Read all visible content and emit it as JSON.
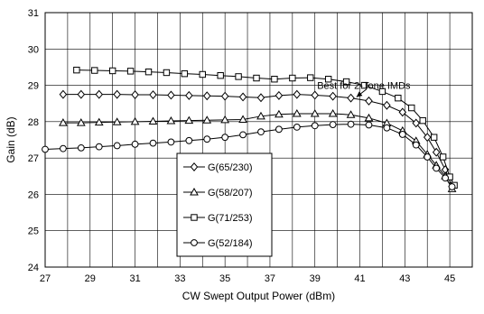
{
  "chart_data": {
    "type": "line",
    "title": "",
    "xlabel": "CW Swept Output Power (dBm)",
    "ylabel": "Gain (dB)",
    "xlim": [
      27,
      46
    ],
    "ylim": [
      24,
      31
    ],
    "xticks": [
      "27",
      "29",
      "31",
      "33",
      "35",
      "37",
      "39",
      "41",
      "43",
      "45"
    ],
    "yticks": [
      "24",
      "25",
      "26",
      "27",
      "28",
      "29",
      "30",
      "31"
    ],
    "grid": "both",
    "legend_position": "center-left",
    "annotation": "Best for 2-Tone IMDs",
    "series": [
      {
        "name": "G(65/230)",
        "marker": "diamond",
        "x": [
          27.8,
          28.6,
          29.4,
          30.2,
          31.0,
          31.8,
          32.6,
          33.4,
          34.2,
          35.0,
          35.8,
          36.6,
          37.4,
          38.2,
          39.0,
          39.8,
          40.6,
          41.4,
          42.2,
          42.9,
          43.5,
          44.0,
          44.4,
          44.8,
          45.1
        ],
        "y": [
          28.75,
          28.75,
          28.75,
          28.75,
          28.74,
          28.74,
          28.73,
          28.72,
          28.71,
          28.7,
          28.68,
          28.66,
          28.72,
          28.75,
          28.73,
          28.7,
          28.65,
          28.57,
          28.45,
          28.26,
          27.96,
          27.57,
          27.16,
          26.68,
          26.22
        ]
      },
      {
        "name": "G(58/207)",
        "marker": "triangle",
        "x": [
          27.8,
          28.6,
          29.4,
          30.2,
          31.0,
          31.8,
          32.6,
          33.4,
          34.2,
          35.0,
          35.8,
          36.6,
          37.4,
          38.2,
          39.0,
          39.8,
          40.6,
          41.4,
          42.2,
          42.9,
          43.5,
          44.0,
          44.4,
          44.8,
          45.1
        ],
        "y": [
          27.97,
          27.97,
          27.98,
          27.99,
          28.0,
          28.01,
          28.02,
          28.03,
          28.04,
          28.05,
          28.06,
          28.15,
          28.2,
          28.22,
          28.22,
          28.22,
          28.19,
          28.1,
          27.96,
          27.75,
          27.47,
          27.1,
          26.8,
          26.5,
          26.15
        ]
      },
      {
        "name": "G(71/253)",
        "marker": "square",
        "x": [
          28.4,
          29.2,
          30.0,
          30.8,
          31.6,
          32.4,
          33.2,
          34.0,
          34.8,
          35.6,
          36.4,
          37.2,
          38.0,
          38.8,
          39.6,
          40.4,
          41.2,
          42.0,
          42.7,
          43.3,
          43.8,
          44.3,
          44.7,
          45.0,
          45.2
        ],
        "y": [
          29.42,
          29.41,
          29.4,
          29.39,
          29.37,
          29.35,
          29.32,
          29.3,
          29.27,
          29.24,
          29.2,
          29.17,
          29.2,
          29.21,
          29.17,
          29.1,
          29.0,
          28.83,
          28.65,
          28.38,
          28.03,
          27.57,
          27.03,
          26.48,
          26.25
        ]
      },
      {
        "name": "G(52/184)",
        "marker": "circle",
        "x": [
          27.0,
          27.8,
          28.6,
          29.4,
          30.2,
          31.0,
          31.8,
          32.6,
          33.4,
          34.2,
          35.0,
          35.8,
          36.6,
          37.4,
          38.2,
          39.0,
          39.8,
          40.6,
          41.4,
          42.2,
          42.9,
          43.5,
          44.0,
          44.4,
          44.8,
          45.1
        ],
        "y": [
          27.24,
          27.26,
          27.28,
          27.31,
          27.34,
          27.38,
          27.41,
          27.44,
          27.48,
          27.52,
          27.57,
          27.64,
          27.72,
          27.79,
          27.85,
          27.89,
          27.92,
          27.93,
          27.91,
          27.83,
          27.65,
          27.36,
          27.03,
          26.72,
          26.45,
          26.21
        ]
      }
    ]
  }
}
